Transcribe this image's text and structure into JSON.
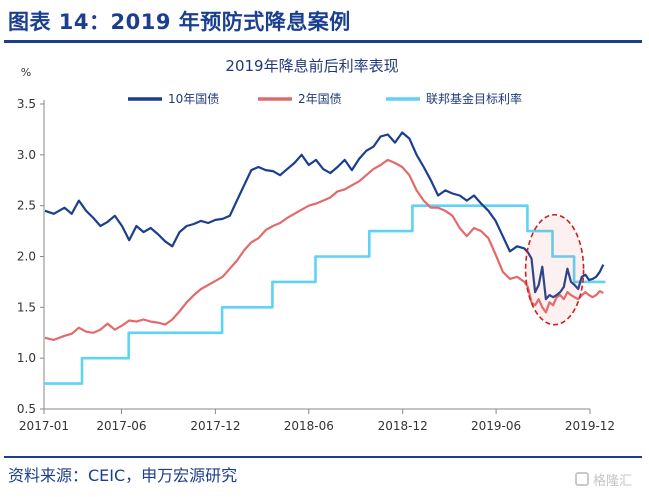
{
  "header": {
    "title": "图表 14：2019 年预防式降息案例"
  },
  "footer": {
    "source": "资料来源：CEIC，申万宏源研究"
  },
  "watermark": {
    "text": "格隆汇"
  },
  "colors": {
    "ten_year": "#1b3f8f",
    "two_year": "#e46a6a",
    "policy": "#5fd3f3",
    "highlight": "#cc2020"
  },
  "chart_data": {
    "type": "line",
    "title": "2019年降息前后利率表现",
    "ylabel": "%",
    "xlabel": "",
    "ylim": [
      0.5,
      3.5
    ],
    "yticks": [
      "3.5",
      "3.0",
      "2.5",
      "2.0",
      "1.5",
      "1.0",
      "0.5"
    ],
    "xticks": [
      "2017-01",
      "2017-06",
      "2017-12",
      "2018-06",
      "2018-12",
      "2019-06",
      "2019-12"
    ],
    "xlim": [
      "2017-01",
      "2019-12"
    ],
    "legend_position": "top",
    "annotation": "dashed ellipse around 2019-08 to 2019-11",
    "series": [
      {
        "name": "10年国债",
        "color": "#1b3f8f",
        "x": [
          "2017-01-03",
          "2017-01-20",
          "2017-02-10",
          "2017-02-24",
          "2017-03-10",
          "2017-03-24",
          "2017-04-07",
          "2017-04-21",
          "2017-05-05",
          "2017-05-19",
          "2017-06-02",
          "2017-06-16",
          "2017-06-30",
          "2017-07-14",
          "2017-07-28",
          "2017-08-11",
          "2017-08-25",
          "2017-09-08",
          "2017-09-22",
          "2017-10-06",
          "2017-10-20",
          "2017-11-03",
          "2017-11-17",
          "2017-12-01",
          "2017-12-15",
          "2017-12-29",
          "2018-01-12",
          "2018-01-26",
          "2018-02-09",
          "2018-02-23",
          "2018-03-09",
          "2018-03-23",
          "2018-04-06",
          "2018-04-20",
          "2018-05-04",
          "2018-05-18",
          "2018-06-01",
          "2018-06-15",
          "2018-06-29",
          "2018-07-13",
          "2018-07-27",
          "2018-08-10",
          "2018-08-24",
          "2018-09-07",
          "2018-09-21",
          "2018-10-05",
          "2018-10-19",
          "2018-11-02",
          "2018-11-16",
          "2018-11-30",
          "2018-12-14",
          "2018-12-28",
          "2019-01-11",
          "2019-01-25",
          "2019-02-08",
          "2019-02-22",
          "2019-03-08",
          "2019-03-22",
          "2019-04-05",
          "2019-04-19",
          "2019-05-03",
          "2019-05-17",
          "2019-05-31",
          "2019-06-14",
          "2019-06-28",
          "2019-07-12",
          "2019-07-26",
          "2019-08-02",
          "2019-08-09",
          "2019-08-16",
          "2019-08-23",
          "2019-08-30",
          "2019-09-06",
          "2019-09-13",
          "2019-09-20",
          "2019-09-27",
          "2019-10-04",
          "2019-10-11",
          "2019-10-18",
          "2019-10-25",
          "2019-11-01",
          "2019-11-08",
          "2019-11-15",
          "2019-11-22",
          "2019-11-29",
          "2019-12-06",
          "2019-12-13",
          "2019-12-20",
          "2019-12-27"
        ],
        "values": [
          2.45,
          2.42,
          2.48,
          2.42,
          2.55,
          2.45,
          2.38,
          2.3,
          2.34,
          2.4,
          2.3,
          2.16,
          2.3,
          2.24,
          2.28,
          2.22,
          2.15,
          2.1,
          2.24,
          2.3,
          2.32,
          2.35,
          2.33,
          2.36,
          2.37,
          2.4,
          2.55,
          2.7,
          2.85,
          2.88,
          2.85,
          2.84,
          2.8,
          2.86,
          2.92,
          3.0,
          2.9,
          2.95,
          2.86,
          2.82,
          2.88,
          2.95,
          2.85,
          2.96,
          3.04,
          3.08,
          3.18,
          3.2,
          3.12,
          3.22,
          3.16,
          3.0,
          2.88,
          2.75,
          2.6,
          2.65,
          2.62,
          2.6,
          2.55,
          2.6,
          2.52,
          2.45,
          2.35,
          2.2,
          2.05,
          2.1,
          2.08,
          2.04,
          1.98,
          1.65,
          1.72,
          1.9,
          1.58,
          1.62,
          1.6,
          1.62,
          1.65,
          1.7,
          1.88,
          1.75,
          1.72,
          1.68,
          1.8,
          1.82,
          1.77,
          1.78,
          1.8,
          1.85,
          1.92
        ]
      },
      {
        "name": "2年国债",
        "color": "#e46a6a",
        "x": [
          "2017-01-03",
          "2017-01-20",
          "2017-02-10",
          "2017-02-24",
          "2017-03-10",
          "2017-03-24",
          "2017-04-07",
          "2017-04-21",
          "2017-05-05",
          "2017-05-19",
          "2017-06-02",
          "2017-06-16",
          "2017-06-30",
          "2017-07-14",
          "2017-07-28",
          "2017-08-11",
          "2017-08-25",
          "2017-09-08",
          "2017-09-22",
          "2017-10-06",
          "2017-10-20",
          "2017-11-03",
          "2017-11-17",
          "2017-12-01",
          "2017-12-15",
          "2017-12-29",
          "2018-01-12",
          "2018-01-26",
          "2018-02-09",
          "2018-02-23",
          "2018-03-09",
          "2018-03-23",
          "2018-04-06",
          "2018-04-20",
          "2018-05-04",
          "2018-05-18",
          "2018-06-01",
          "2018-06-15",
          "2018-06-29",
          "2018-07-13",
          "2018-07-27",
          "2018-08-10",
          "2018-08-24",
          "2018-09-07",
          "2018-09-21",
          "2018-10-05",
          "2018-10-19",
          "2018-11-02",
          "2018-11-16",
          "2018-11-30",
          "2018-12-14",
          "2018-12-28",
          "2019-01-11",
          "2019-01-25",
          "2019-02-08",
          "2019-02-22",
          "2019-03-08",
          "2019-03-22",
          "2019-04-05",
          "2019-04-19",
          "2019-05-03",
          "2019-05-17",
          "2019-05-31",
          "2019-06-14",
          "2019-06-28",
          "2019-07-12",
          "2019-07-26",
          "2019-08-02",
          "2019-08-09",
          "2019-08-16",
          "2019-08-23",
          "2019-08-30",
          "2019-09-06",
          "2019-09-13",
          "2019-09-20",
          "2019-09-27",
          "2019-10-04",
          "2019-10-11",
          "2019-10-18",
          "2019-10-25",
          "2019-11-01",
          "2019-11-08",
          "2019-11-15",
          "2019-11-22",
          "2019-11-29",
          "2019-12-06",
          "2019-12-13",
          "2019-12-20",
          "2019-12-27"
        ],
        "values": [
          1.2,
          1.18,
          1.22,
          1.24,
          1.3,
          1.26,
          1.25,
          1.28,
          1.34,
          1.28,
          1.32,
          1.37,
          1.36,
          1.38,
          1.36,
          1.35,
          1.33,
          1.38,
          1.46,
          1.55,
          1.62,
          1.68,
          1.72,
          1.76,
          1.8,
          1.88,
          1.96,
          2.06,
          2.14,
          2.18,
          2.26,
          2.3,
          2.33,
          2.38,
          2.42,
          2.46,
          2.5,
          2.52,
          2.55,
          2.58,
          2.64,
          2.66,
          2.7,
          2.74,
          2.8,
          2.86,
          2.9,
          2.95,
          2.92,
          2.88,
          2.8,
          2.65,
          2.55,
          2.48,
          2.48,
          2.45,
          2.4,
          2.28,
          2.2,
          2.28,
          2.25,
          2.18,
          2.02,
          1.85,
          1.78,
          1.8,
          1.75,
          1.7,
          1.55,
          1.52,
          1.58,
          1.5,
          1.45,
          1.55,
          1.52,
          1.6,
          1.62,
          1.58,
          1.65,
          1.62,
          1.6,
          1.58,
          1.62,
          1.65,
          1.62,
          1.6,
          1.62,
          1.66,
          1.64
        ]
      },
      {
        "name": "联邦基金目标利率",
        "color": "#5fd3f3",
        "step": true,
        "x": [
          "2017-01-01",
          "2017-03-16",
          "2017-06-15",
          "2017-12-14",
          "2018-03-22",
          "2018-06-14",
          "2018-09-27",
          "2018-12-20",
          "2019-08-01",
          "2019-09-19",
          "2019-10-31",
          "2019-12-31"
        ],
        "values": [
          0.75,
          1.0,
          1.25,
          1.5,
          1.75,
          2.0,
          2.25,
          2.5,
          2.25,
          2.0,
          1.75,
          1.75
        ]
      }
    ]
  }
}
